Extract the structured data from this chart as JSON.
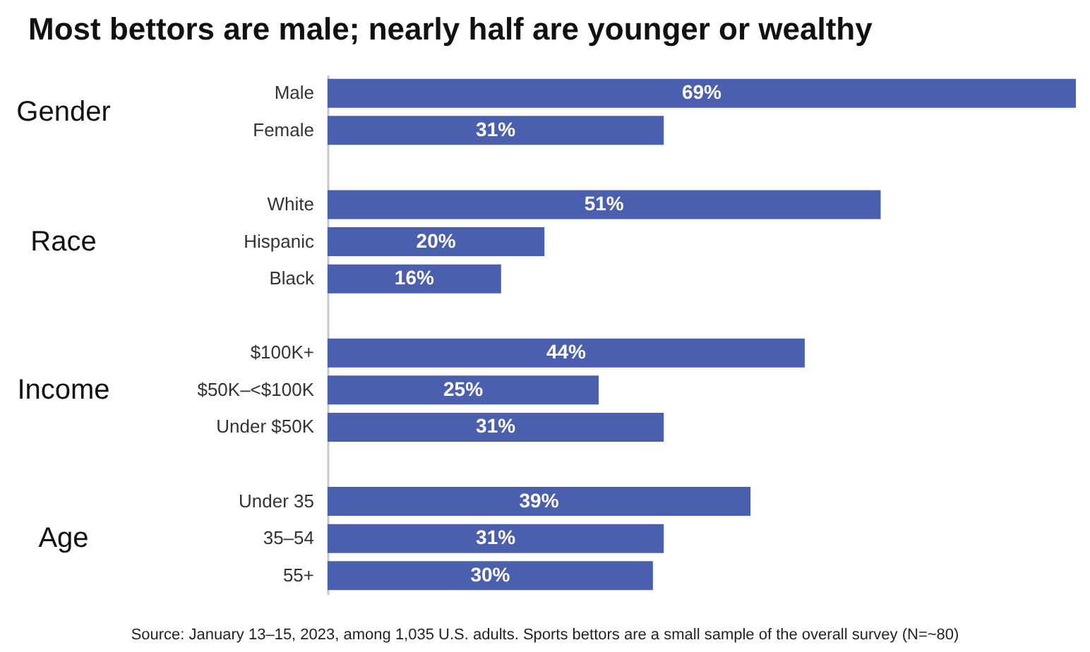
{
  "chart_data": {
    "type": "bar",
    "orientation": "horizontal",
    "title": "Most bettors are male; nearly half are younger or wealthy",
    "categories": [
      "Male",
      "Female",
      null,
      "White",
      "Hispanic",
      "Black",
      null,
      "$100K+",
      "$50K–<$100K",
      "Under $50K",
      null,
      "Under 35",
      "35–54",
      "55+"
    ],
    "values": [
      69,
      31,
      null,
      51,
      20,
      16,
      null,
      44,
      25,
      31,
      null,
      39,
      31,
      30
    ],
    "value_labels": [
      "69%",
      "31%",
      null,
      "51%",
      "20%",
      "16%",
      null,
      "44%",
      "25%",
      "31%",
      null,
      "39%",
      "31%",
      "30%"
    ],
    "color": "#4a5fad",
    "annotations": [
      "Gender",
      "Race",
      "Income",
      "Age",
      "Source: January 13–15, 2023, among 1,035 U.S. adults. Sports bettors are a small sample of the overall survey (N=~80)"
    ]
  }
}
